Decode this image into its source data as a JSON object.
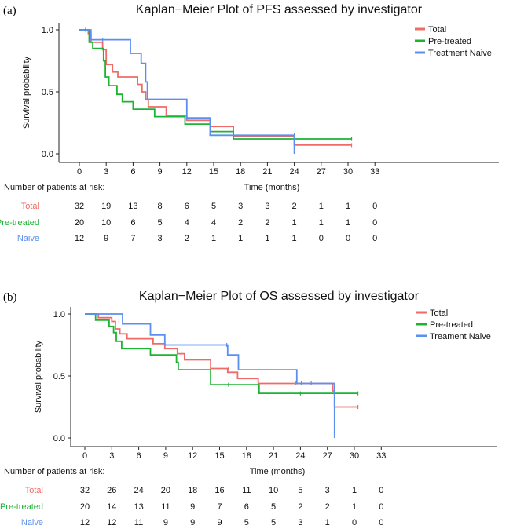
{
  "colors": {
    "total": "#EF6B67",
    "pretreated": "#1DB333",
    "naive": "#5B8FF0"
  },
  "chart_data": [
    {
      "type": "line",
      "panel_label": "(a)",
      "title": "Kaplan−Meier Plot of PFS assessed by investigator",
      "xlabel": "Time (months)",
      "ylabel": "Survival probability",
      "xlim": [
        0,
        33
      ],
      "ylim": [
        0,
        1
      ],
      "xticks": [
        "0",
        "3",
        "6",
        "9",
        "12",
        "15",
        "18",
        "21",
        "24",
        "27",
        "30",
        "33"
      ],
      "yticks": [
        "0.0",
        "0.5",
        "1.0"
      ],
      "legend_position": "top-right",
      "series": [
        {
          "name": "Total",
          "color_key": "total",
          "steps": [
            [
              0,
              1.0
            ],
            [
              1.0,
              0.97
            ],
            [
              1.3,
              0.9
            ],
            [
              2.6,
              0.84
            ],
            [
              3.0,
              0.72
            ],
            [
              3.7,
              0.66
            ],
            [
              4.3,
              0.62
            ],
            [
              6.5,
              0.56
            ],
            [
              7.0,
              0.5
            ],
            [
              7.4,
              0.44
            ],
            [
              7.7,
              0.38
            ],
            [
              9.7,
              0.31
            ],
            [
              12.0,
              0.27
            ],
            [
              14.6,
              0.22
            ],
            [
              17.2,
              0.14
            ],
            [
              24.0,
              0.07
            ],
            [
              30.4,
              0.07
            ]
          ],
          "censors": [
            [
              0.7,
              1.0
            ],
            [
              30.4,
              0.07
            ]
          ]
        },
        {
          "name": "Pre-treated",
          "color_key": "pretreated",
          "steps": [
            [
              0,
              1.0
            ],
            [
              1.1,
              0.9
            ],
            [
              1.5,
              0.85
            ],
            [
              2.7,
              0.75
            ],
            [
              2.9,
              0.62
            ],
            [
              3.3,
              0.55
            ],
            [
              4.2,
              0.48
            ],
            [
              4.8,
              0.42
            ],
            [
              6.0,
              0.36
            ],
            [
              8.4,
              0.3
            ],
            [
              11.8,
              0.24
            ],
            [
              14.6,
              0.18
            ],
            [
              17.2,
              0.12
            ],
            [
              30.4,
              0.12
            ]
          ],
          "censors": [
            [
              0.7,
              1.0
            ],
            [
              30.4,
              0.12
            ]
          ]
        },
        {
          "name": "Treatment Naive",
          "color_key": "naive",
          "steps": [
            [
              0,
              1.0
            ],
            [
              1.3,
              0.92
            ],
            [
              5.7,
              0.81
            ],
            [
              6.9,
              0.73
            ],
            [
              7.4,
              0.58
            ],
            [
              7.6,
              0.44
            ],
            [
              12.0,
              0.29
            ],
            [
              14.6,
              0.15
            ],
            [
              17.2,
              0.15
            ],
            [
              24.0,
              0.0
            ]
          ],
          "censors": [
            [
              2.6,
              0.92
            ],
            [
              24.0,
              0.15
            ]
          ]
        }
      ],
      "risk_table": {
        "header": "Number of patients at risk:",
        "rows": [
          {
            "label": "Total",
            "color_key": "total",
            "values": [
              "32",
              "19",
              "13",
              "8",
              "6",
              "5",
              "3",
              "3",
              "2",
              "1",
              "1",
              "0"
            ]
          },
          {
            "label": "Pre-treated",
            "color_key": "pretreated",
            "values": [
              "20",
              "10",
              "6",
              "5",
              "4",
              "4",
              "2",
              "2",
              "1",
              "1",
              "1",
              "0"
            ]
          },
          {
            "label": "Naive",
            "color_key": "naive",
            "values": [
              "12",
              "9",
              "7",
              "3",
              "2",
              "1",
              "1",
              "1",
              "1",
              "0",
              "0",
              "0"
            ]
          }
        ]
      }
    },
    {
      "type": "line",
      "panel_label": "(b)",
      "title": "Kaplan−Meier Plot of OS assessed by investigator",
      "xlabel": "Time (months)",
      "ylabel": "Survival probability",
      "xlim": [
        0,
        33
      ],
      "ylim": [
        0,
        1
      ],
      "xticks": [
        "0",
        "3",
        "6",
        "9",
        "12",
        "15",
        "18",
        "21",
        "24",
        "27",
        "30",
        "33"
      ],
      "yticks": [
        "0.0",
        "0.5",
        "1.0"
      ],
      "legend_position": "top-right",
      "series": [
        {
          "name": "Total",
          "color_key": "total",
          "steps": [
            [
              0,
              1.0
            ],
            [
              1.5,
              0.97
            ],
            [
              3.0,
              0.94
            ],
            [
              3.4,
              0.88
            ],
            [
              3.9,
              0.84
            ],
            [
              4.7,
              0.8
            ],
            [
              7.6,
              0.76
            ],
            [
              8.9,
              0.72
            ],
            [
              10.3,
              0.68
            ],
            [
              11.1,
              0.63
            ],
            [
              14.0,
              0.56
            ],
            [
              15.9,
              0.53
            ],
            [
              17.0,
              0.48
            ],
            [
              19.3,
              0.44
            ],
            [
              27.6,
              0.38
            ],
            [
              27.8,
              0.25
            ],
            [
              30.4,
              0.25
            ]
          ],
          "censors": [
            [
              3.8,
              0.94
            ],
            [
              16.0,
              0.56
            ],
            [
              23.5,
              0.44
            ],
            [
              30.4,
              0.25
            ]
          ]
        },
        {
          "name": "Pre-treated",
          "color_key": "pretreated",
          "steps": [
            [
              0,
              1.0
            ],
            [
              1.2,
              0.95
            ],
            [
              2.7,
              0.9
            ],
            [
              3.2,
              0.85
            ],
            [
              3.5,
              0.78
            ],
            [
              4.1,
              0.72
            ],
            [
              7.3,
              0.67
            ],
            [
              10.2,
              0.61
            ],
            [
              10.4,
              0.55
            ],
            [
              14.0,
              0.43
            ],
            [
              19.4,
              0.36
            ],
            [
              30.4,
              0.36
            ]
          ],
          "censors": [
            [
              16.0,
              0.43
            ],
            [
              24.0,
              0.36
            ],
            [
              30.4,
              0.36
            ]
          ]
        },
        {
          "name": "Treament Naive",
          "color_key": "naive",
          "steps": [
            [
              0,
              1.0
            ],
            [
              1.4,
              1.0
            ],
            [
              4.2,
              0.92
            ],
            [
              7.3,
              0.83
            ],
            [
              8.9,
              0.75
            ],
            [
              15.9,
              0.67
            ],
            [
              17.1,
              0.55
            ],
            [
              23.6,
              0.44
            ],
            [
              27.8,
              0.0
            ]
          ],
          "censors": [
            [
              15.8,
              0.75
            ],
            [
              24.1,
              0.44
            ],
            [
              25.2,
              0.44
            ]
          ]
        }
      ],
      "risk_table": {
        "header": "Number of patients at risk:",
        "rows": [
          {
            "label": "Total",
            "color_key": "total",
            "values": [
              "32",
              "26",
              "24",
              "20",
              "18",
              "16",
              "11",
              "10",
              "5",
              "3",
              "1",
              "0"
            ]
          },
          {
            "label": "Pre-treated",
            "color_key": "pretreated",
            "values": [
              "20",
              "14",
              "13",
              "11",
              "9",
              "7",
              "6",
              "5",
              "2",
              "2",
              "1",
              "0"
            ]
          },
          {
            "label": "Naive",
            "color_key": "naive",
            "values": [
              "12",
              "12",
              "11",
              "9",
              "9",
              "9",
              "5",
              "5",
              "3",
              "1",
              "0",
              "0"
            ]
          }
        ]
      }
    }
  ]
}
